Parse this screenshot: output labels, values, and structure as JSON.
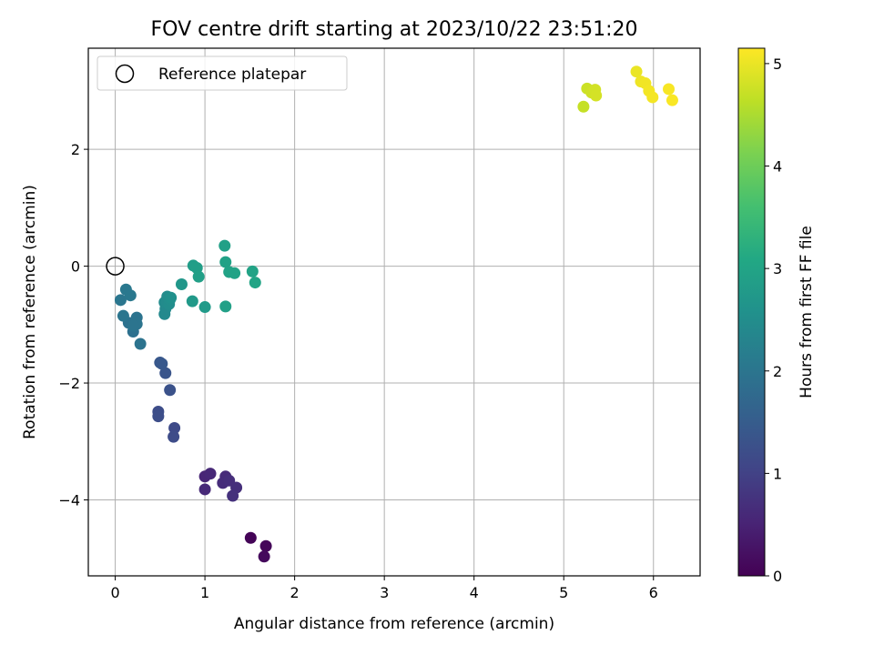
{
  "chart_data": {
    "type": "scatter",
    "title": "FOV centre drift starting at 2023/10/22 23:51:20",
    "xlabel": "Angular distance from reference (arcmin)",
    "ylabel": "Rotation from reference (arcmin)",
    "xlim": [
      -0.3,
      6.52
    ],
    "ylim": [
      -5.3,
      3.73
    ],
    "xticks": [
      0,
      1,
      2,
      3,
      4,
      5,
      6
    ],
    "yticks": [
      -4,
      -2,
      0,
      2
    ],
    "xtick_labels": [
      "0",
      "1",
      "2",
      "3",
      "4",
      "5",
      "6"
    ],
    "ytick_labels": [
      "−4",
      "−2",
      "0",
      "2"
    ],
    "grid": true,
    "legend": {
      "position": "top-left",
      "label": "Reference platepar"
    },
    "reference_point": {
      "x": 0,
      "y": 0
    },
    "colorbar": {
      "label": "Hours from first FF file",
      "colormap": "viridis",
      "range": [
        0,
        5.15
      ],
      "ticks": [
        0,
        1,
        2,
        3,
        4,
        5
      ],
      "tick_labels": [
        "0",
        "1",
        "2",
        "3",
        "4",
        "5"
      ]
    },
    "points": [
      {
        "x": 1.51,
        "y": -4.65,
        "hours": 0.05
      },
      {
        "x": 1.68,
        "y": -4.79,
        "hours": 0.08
      },
      {
        "x": 1.66,
        "y": -4.97,
        "hours": 0.12
      },
      {
        "x": 1.0,
        "y": -3.6,
        "hours": 0.55
      },
      {
        "x": 1.06,
        "y": -3.55,
        "hours": 0.58
      },
      {
        "x": 1.0,
        "y": -3.82,
        "hours": 0.6
      },
      {
        "x": 1.23,
        "y": -3.6,
        "hours": 0.62
      },
      {
        "x": 1.2,
        "y": -3.71,
        "hours": 0.65
      },
      {
        "x": 1.27,
        "y": -3.67,
        "hours": 0.68
      },
      {
        "x": 1.35,
        "y": -3.79,
        "hours": 0.7
      },
      {
        "x": 1.31,
        "y": -3.93,
        "hours": 0.72
      },
      {
        "x": 0.66,
        "y": -2.77,
        "hours": 1.15
      },
      {
        "x": 0.65,
        "y": -2.92,
        "hours": 1.18
      },
      {
        "x": 0.48,
        "y": -2.49,
        "hours": 1.2
      },
      {
        "x": 0.48,
        "y": -2.57,
        "hours": 1.22
      },
      {
        "x": 0.61,
        "y": -2.12,
        "hours": 1.3
      },
      {
        "x": 0.56,
        "y": -1.83,
        "hours": 1.35
      },
      {
        "x": 0.5,
        "y": -1.65,
        "hours": 1.4
      },
      {
        "x": 0.52,
        "y": -1.67,
        "hours": 1.42
      },
      {
        "x": 0.28,
        "y": -1.33,
        "hours": 1.95
      },
      {
        "x": 0.2,
        "y": -1.12,
        "hours": 1.9
      },
      {
        "x": 0.15,
        "y": -0.97,
        "hours": 1.92
      },
      {
        "x": 0.24,
        "y": -0.88,
        "hours": 1.95
      },
      {
        "x": 0.24,
        "y": -0.99,
        "hours": 1.97
      },
      {
        "x": 0.2,
        "y": -1.02,
        "hours": 1.98
      },
      {
        "x": 0.09,
        "y": -0.85,
        "hours": 2.0
      },
      {
        "x": 0.06,
        "y": -0.58,
        "hours": 2.02
      },
      {
        "x": 0.12,
        "y": -0.4,
        "hours": 2.05
      },
      {
        "x": 0.17,
        "y": -0.5,
        "hours": 2.07
      },
      {
        "x": 0.55,
        "y": -0.82,
        "hours": 2.4
      },
      {
        "x": 0.56,
        "y": -0.73,
        "hours": 2.42
      },
      {
        "x": 0.55,
        "y": -0.62,
        "hours": 2.45
      },
      {
        "x": 0.58,
        "y": -0.52,
        "hours": 2.48
      },
      {
        "x": 0.6,
        "y": -0.65,
        "hours": 2.5
      },
      {
        "x": 0.61,
        "y": -0.57,
        "hours": 2.52
      },
      {
        "x": 0.62,
        "y": -0.54,
        "hours": 2.55
      },
      {
        "x": 0.74,
        "y": -0.31,
        "hours": 2.7
      },
      {
        "x": 0.86,
        "y": -0.6,
        "hours": 2.75
      },
      {
        "x": 1.0,
        "y": -0.7,
        "hours": 2.78
      },
      {
        "x": 0.87,
        "y": 0.01,
        "hours": 2.85
      },
      {
        "x": 0.91,
        "y": -0.03,
        "hours": 2.87
      },
      {
        "x": 0.93,
        "y": -0.18,
        "hours": 2.88
      },
      {
        "x": 1.23,
        "y": -0.69,
        "hours": 2.9
      },
      {
        "x": 1.22,
        "y": 0.35,
        "hours": 2.92
      },
      {
        "x": 1.23,
        "y": 0.07,
        "hours": 2.93
      },
      {
        "x": 1.27,
        "y": -0.1,
        "hours": 2.95
      },
      {
        "x": 1.33,
        "y": -0.12,
        "hours": 2.96
      },
      {
        "x": 1.53,
        "y": -0.09,
        "hours": 2.98
      },
      {
        "x": 1.56,
        "y": -0.28,
        "hours": 3.0
      },
      {
        "x": 5.22,
        "y": 2.73,
        "hours": 4.7
      },
      {
        "x": 5.26,
        "y": 3.04,
        "hours": 4.75
      },
      {
        "x": 5.31,
        "y": 2.97,
        "hours": 4.78
      },
      {
        "x": 5.35,
        "y": 3.02,
        "hours": 4.8
      },
      {
        "x": 5.36,
        "y": 2.92,
        "hours": 4.82
      },
      {
        "x": 5.81,
        "y": 3.33,
        "hours": 5.0
      },
      {
        "x": 5.86,
        "y": 3.16,
        "hours": 5.03
      },
      {
        "x": 5.91,
        "y": 3.13,
        "hours": 5.05
      },
      {
        "x": 5.95,
        "y": 3.0,
        "hours": 5.07
      },
      {
        "x": 5.99,
        "y": 2.89,
        "hours": 5.08
      },
      {
        "x": 6.17,
        "y": 3.03,
        "hours": 5.1
      },
      {
        "x": 6.21,
        "y": 2.84,
        "hours": 5.12
      }
    ]
  }
}
